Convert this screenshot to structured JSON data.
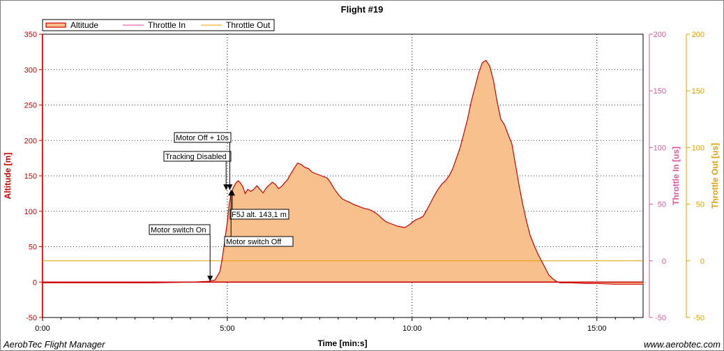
{
  "chart_data": {
    "type": "area",
    "title": "Flight #19",
    "xlabel": "Time [min:s]",
    "ylabel_left": "Altitude [m]",
    "ylabel_right1": "Throttle In [us]",
    "ylabel_right2": "Throttle Out [us]",
    "xlim_seconds": [
      0,
      975
    ],
    "x_ticks": [
      {
        "label": "0:00",
        "value": 0
      },
      {
        "label": "5:00",
        "value": 300
      },
      {
        "label": "10:00",
        "value": 600
      },
      {
        "label": "15:00",
        "value": 900
      }
    ],
    "y_left": {
      "min": -50,
      "max": 350,
      "ticks": [
        "-50",
        "0",
        "50",
        "100",
        "150",
        "200",
        "250",
        "300",
        "350"
      ]
    },
    "y_throttle_in": {
      "min": -50,
      "max": 200,
      "ticks": [
        "-50",
        "0",
        "50",
        "100",
        "150",
        "200"
      ]
    },
    "y_throttle_out": {
      "min": -50,
      "max": 200,
      "ticks": [
        "-50",
        "0",
        "50",
        "100",
        "150",
        "200"
      ]
    },
    "legend": [
      {
        "name": "Altitude",
        "color": "#cc0000"
      },
      {
        "name": "Throttle In",
        "color": "#e040a0"
      },
      {
        "name": "Throttle Out",
        "color": "#e8a000"
      }
    ],
    "legend_position": "top-left",
    "grid": true,
    "colors": {
      "altitude_line": "#cc0000",
      "altitude_fill": "#f8c08c",
      "axis_left": "#cc0000",
      "axis_throttle_in": "#e0559d",
      "axis_throttle_out": "#e0a000",
      "grid": "#cc0000"
    },
    "series": [
      {
        "name": "Altitude",
        "unit": "m",
        "x": [
          0,
          30,
          60,
          120,
          180,
          240,
          270,
          280,
          288,
          292,
          296,
          300,
          303,
          306,
          309,
          312,
          315,
          318,
          321,
          325,
          329,
          333,
          338,
          343,
          348,
          353,
          358,
          363,
          368,
          373,
          378,
          383,
          388,
          393,
          398,
          403,
          408,
          414,
          420,
          426,
          432,
          438,
          444,
          450,
          456,
          462,
          468,
          474,
          480,
          486,
          492,
          498,
          504,
          510,
          516,
          522,
          528,
          534,
          540,
          546,
          552,
          558,
          564,
          570,
          576,
          582,
          588,
          594,
          600,
          606,
          612,
          618,
          624,
          630,
          636,
          642,
          648,
          654,
          660,
          666,
          672,
          678,
          684,
          690,
          696,
          702,
          708,
          714,
          720,
          726,
          732,
          738,
          744,
          750,
          756,
          762,
          768,
          774,
          780,
          786,
          792,
          798,
          804,
          810,
          816,
          822,
          828,
          834,
          840,
          850,
          860,
          880,
          900,
          930,
          960,
          975
        ],
        "values": [
          -1,
          -1,
          -1,
          -1,
          -1,
          0,
          1,
          3,
          15,
          35,
          60,
          85,
          110,
          125,
          132,
          137,
          141,
          143,
          140,
          135,
          125,
          131,
          128,
          131,
          136,
          131,
          126,
          133,
          137,
          141,
          138,
          132,
          135,
          140,
          145,
          153,
          160,
          168,
          166,
          162,
          160,
          155,
          153,
          151,
          149,
          147,
          140,
          131,
          124,
          118,
          115,
          113,
          110,
          108,
          106,
          104,
          103,
          101,
          98,
          94,
          89,
          85,
          83,
          81,
          79,
          78,
          77,
          80,
          84,
          88,
          90,
          93,
          102,
          112,
          122,
          131,
          138,
          143,
          150,
          160,
          175,
          190,
          210,
          230,
          255,
          275,
          295,
          310,
          313,
          305,
          285,
          255,
          230,
          222,
          208,
          195,
          165,
          135,
          108,
          85,
          65,
          52,
          40,
          30,
          20,
          10,
          5,
          1,
          -1,
          -1,
          -1,
          -2,
          -2,
          -3,
          -3,
          -3
        ]
      },
      {
        "name": "Throttle In",
        "unit": "us",
        "x": [
          0,
          975
        ],
        "values": [
          -19,
          -19
        ]
      },
      {
        "name": "Throttle Out",
        "unit": "us",
        "x": [
          0,
          975
        ],
        "values": [
          0,
          0
        ]
      }
    ],
    "annotations": [
      {
        "label": "Motor switch On",
        "x": 272,
        "y": 0
      },
      {
        "label": "Tracking Disabled",
        "x": 298,
        "y": 130
      },
      {
        "label": "Motor Off + 10s",
        "x": 304,
        "y": 130
      },
      {
        "label": "F5J alt. 143,1 m",
        "x": 308,
        "y": 130
      },
      {
        "label": "Motor switch Off",
        "x": 306,
        "y": 130
      }
    ]
  },
  "footer": {
    "left": "AerobTec Flight Manager",
    "right": "www.aerobtec.com"
  }
}
